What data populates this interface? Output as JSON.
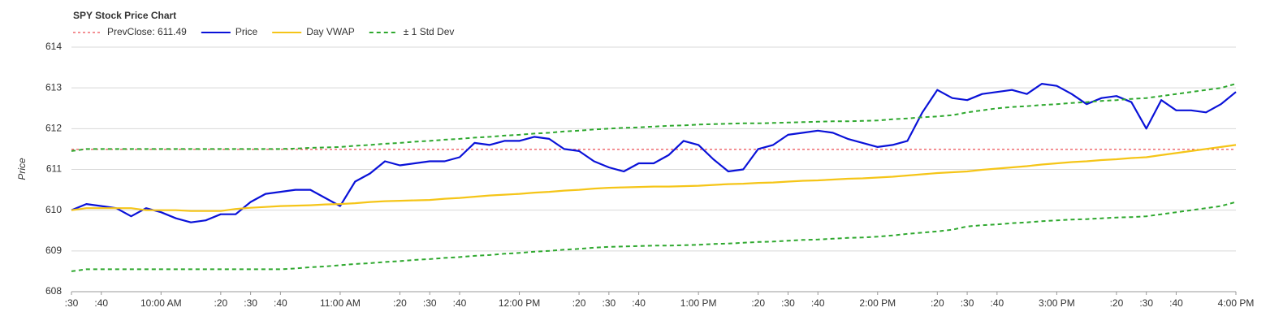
{
  "chart_data": {
    "type": "line",
    "title": "SPY Stock Price Chart",
    "y_label": "Price",
    "x": [
      570,
      575,
      580,
      585,
      590,
      595,
      600,
      605,
      610,
      615,
      620,
      625,
      630,
      635,
      640,
      645,
      650,
      655,
      660,
      665,
      670,
      675,
      680,
      685,
      690,
      695,
      700,
      705,
      710,
      715,
      720,
      725,
      730,
      735,
      740,
      745,
      750,
      755,
      760,
      765,
      770,
      775,
      780,
      785,
      790,
      795,
      800,
      805,
      810,
      815,
      820,
      825,
      830,
      835,
      840,
      845,
      850,
      855,
      860,
      865,
      870,
      875,
      880,
      885,
      890,
      895,
      900,
      905,
      910,
      915,
      920,
      925,
      930,
      935,
      940,
      945,
      950,
      955,
      960
    ],
    "reference_line": {
      "label": "PrevClose: 611.49",
      "value": 611.49,
      "color": "#e8202a"
    },
    "series": [
      {
        "name": "Price",
        "color": "#0a12d8",
        "dash": false,
        "values": [
          610.0,
          610.15,
          610.1,
          610.05,
          609.85,
          610.05,
          609.95,
          609.8,
          609.7,
          609.75,
          609.9,
          609.9,
          610.2,
          610.4,
          610.45,
          610.5,
          610.5,
          610.3,
          610.1,
          610.7,
          610.9,
          611.2,
          611.1,
          611.15,
          611.2,
          611.2,
          611.3,
          611.65,
          611.6,
          611.7,
          611.7,
          611.8,
          611.75,
          611.5,
          611.45,
          611.2,
          611.05,
          610.95,
          611.15,
          611.15,
          611.35,
          611.7,
          611.6,
          611.25,
          610.95,
          611.0,
          611.5,
          611.6,
          611.85,
          611.9,
          611.95,
          611.9,
          611.75,
          611.65,
          611.55,
          611.6,
          611.7,
          612.4,
          612.95,
          612.75,
          612.7,
          612.85,
          612.9,
          612.95,
          612.85,
          613.1,
          613.05,
          612.85,
          612.6,
          612.75,
          612.8,
          612.65,
          612.0,
          612.7,
          612.45,
          612.45,
          612.4,
          612.6,
          612.9
        ]
      },
      {
        "name": "Day VWAP",
        "color": "#f5c518",
        "dash": false,
        "values": [
          610.0,
          610.05,
          610.05,
          610.05,
          610.05,
          610.0,
          610.0,
          610.0,
          609.98,
          609.98,
          609.98,
          610.03,
          610.06,
          610.08,
          610.1,
          610.11,
          610.12,
          610.14,
          610.15,
          610.17,
          610.2,
          610.22,
          610.23,
          610.24,
          610.25,
          610.28,
          610.3,
          610.33,
          610.36,
          610.38,
          610.4,
          610.43,
          610.45,
          610.48,
          610.5,
          610.53,
          610.55,
          610.56,
          610.57,
          610.58,
          610.58,
          610.59,
          610.6,
          610.62,
          610.64,
          610.65,
          610.67,
          610.68,
          610.7,
          610.72,
          610.73,
          610.75,
          610.77,
          610.78,
          610.8,
          610.82,
          610.85,
          610.88,
          610.91,
          610.93,
          610.95,
          610.99,
          611.02,
          611.05,
          611.08,
          611.12,
          611.15,
          611.18,
          611.2,
          611.23,
          611.25,
          611.28,
          611.3,
          611.35,
          611.4,
          611.45,
          611.5,
          611.55,
          611.6
        ]
      },
      {
        "name": "± 1 Std Dev",
        "color": "#2ea82e",
        "dash": true,
        "values": [
          611.45,
          611.5,
          611.5,
          611.5,
          611.5,
          611.5,
          611.5,
          611.5,
          611.5,
          611.5,
          611.5,
          611.5,
          611.5,
          611.5,
          611.5,
          611.51,
          611.53,
          611.54,
          611.55,
          611.58,
          611.6,
          611.63,
          611.65,
          611.68,
          611.7,
          611.73,
          611.75,
          611.78,
          611.8,
          611.83,
          611.85,
          611.88,
          611.9,
          611.93,
          611.95,
          611.98,
          612.0,
          612.02,
          612.03,
          612.05,
          612.07,
          612.08,
          612.1,
          612.11,
          612.12,
          612.13,
          612.13,
          612.14,
          612.15,
          612.16,
          612.17,
          612.18,
          612.18,
          612.19,
          612.2,
          612.23,
          612.25,
          612.28,
          612.3,
          612.33,
          612.4,
          612.45,
          612.5,
          612.53,
          612.55,
          612.58,
          612.6,
          612.63,
          612.65,
          612.68,
          612.7,
          612.73,
          612.75,
          612.8,
          612.85,
          612.9,
          612.95,
          613.0,
          613.1
        ]
      },
      {
        "color": "#2ea82e",
        "dash": true,
        "values": [
          608.5,
          608.55,
          608.55,
          608.55,
          608.55,
          608.55,
          608.55,
          608.55,
          608.55,
          608.55,
          608.55,
          608.55,
          608.55,
          608.55,
          608.55,
          608.57,
          608.6,
          608.62,
          608.65,
          608.68,
          608.7,
          608.73,
          608.75,
          608.78,
          608.8,
          608.83,
          608.85,
          608.88,
          608.9,
          608.93,
          608.95,
          608.98,
          609.0,
          609.03,
          609.05,
          609.08,
          609.1,
          609.11,
          609.12,
          609.13,
          609.13,
          609.14,
          609.15,
          609.17,
          609.18,
          609.2,
          609.22,
          609.23,
          609.25,
          609.27,
          609.28,
          609.3,
          609.32,
          609.33,
          609.35,
          609.38,
          609.42,
          609.45,
          609.48,
          609.52,
          609.6,
          609.63,
          609.65,
          609.68,
          609.7,
          609.73,
          609.75,
          609.77,
          609.78,
          609.8,
          609.82,
          609.83,
          609.85,
          609.9,
          609.95,
          610.0,
          610.05,
          610.1,
          610.2
        ]
      }
    ],
    "xlim": [
      570,
      960
    ],
    "xticks": [
      {
        "value": 570,
        "label": ":30"
      },
      {
        "value": 580,
        "label": ":40"
      },
      {
        "value": 600,
        "label": "10:00 AM"
      },
      {
        "value": 620,
        "label": ":20"
      },
      {
        "value": 630,
        "label": ":30"
      },
      {
        "value": 640,
        "label": ":40"
      },
      {
        "value": 660,
        "label": "11:00 AM"
      },
      {
        "value": 680,
        "label": ":20"
      },
      {
        "value": 690,
        "label": ":30"
      },
      {
        "value": 700,
        "label": ":40"
      },
      {
        "value": 720,
        "label": "12:00 PM"
      },
      {
        "value": 740,
        "label": ":20"
      },
      {
        "value": 750,
        "label": ":30"
      },
      {
        "value": 760,
        "label": ":40"
      },
      {
        "value": 780,
        "label": "1:00 PM"
      },
      {
        "value": 800,
        "label": ":20"
      },
      {
        "value": 810,
        "label": ":30"
      },
      {
        "value": 820,
        "label": ":40"
      },
      {
        "value": 840,
        "label": "2:00 PM"
      },
      {
        "value": 860,
        "label": ":20"
      },
      {
        "value": 870,
        "label": ":30"
      },
      {
        "value": 880,
        "label": ":40"
      },
      {
        "value": 900,
        "label": "3:00 PM"
      },
      {
        "value": 920,
        "label": ":20"
      },
      {
        "value": 930,
        "label": ":30"
      },
      {
        "value": 940,
        "label": ":40"
      },
      {
        "value": 960,
        "label": "4:00 PM"
      }
    ],
    "ylim": [
      608,
      614
    ],
    "yticks": [
      608,
      609,
      610,
      611,
      612,
      613,
      614
    ],
    "grid": true
  }
}
